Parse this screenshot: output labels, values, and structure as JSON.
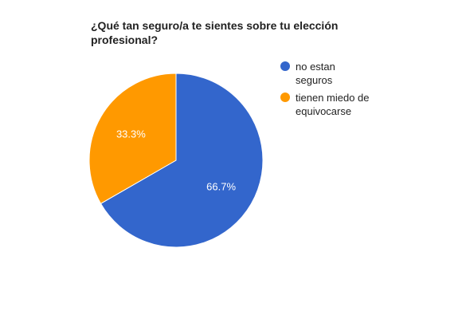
{
  "chart_data": {
    "type": "pie",
    "title_lines": [
      "¿Qué tan seguro/a te sientes sobre tu elección",
      "profesional?"
    ],
    "slices": [
      {
        "label_lines": [
          "no estan",
          "seguros"
        ],
        "value": 66.7,
        "display": "66.7%",
        "color": "#3366CC"
      },
      {
        "label_lines": [
          "tienen miedo de",
          "equivocarse"
        ],
        "value": 33.3,
        "display": "33.3%",
        "color": "#FF9900"
      }
    ],
    "legend_position": "right",
    "slice_border_color": "#ffffff"
  }
}
